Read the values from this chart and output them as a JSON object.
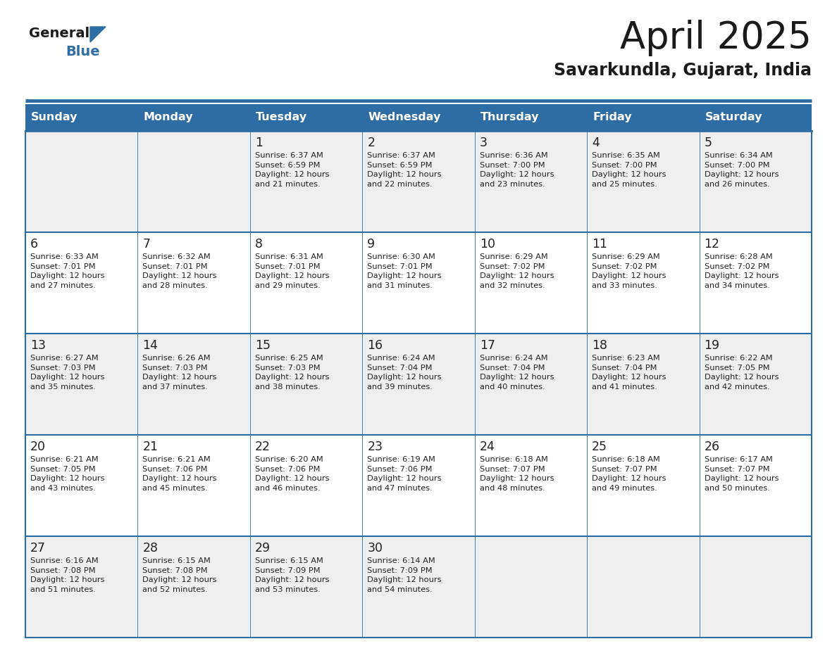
{
  "title": "April 2025",
  "subtitle": "Savarkundla, Gujarat, India",
  "header_bg_color": "#2E6DA4",
  "header_text_color": "#FFFFFF",
  "row_bg_odd": "#EFEFEF",
  "row_bg_even": "#FFFFFF",
  "text_color": "#222222",
  "line_color": "#2E6DA4",
  "days_of_week": [
    "Sunday",
    "Monday",
    "Tuesday",
    "Wednesday",
    "Thursday",
    "Friday",
    "Saturday"
  ],
  "weeks": [
    [
      {
        "day": "",
        "info": ""
      },
      {
        "day": "",
        "info": ""
      },
      {
        "day": "1",
        "info": "Sunrise: 6:37 AM\nSunset: 6:59 PM\nDaylight: 12 hours\nand 21 minutes."
      },
      {
        "day": "2",
        "info": "Sunrise: 6:37 AM\nSunset: 6:59 PM\nDaylight: 12 hours\nand 22 minutes."
      },
      {
        "day": "3",
        "info": "Sunrise: 6:36 AM\nSunset: 7:00 PM\nDaylight: 12 hours\nand 23 minutes."
      },
      {
        "day": "4",
        "info": "Sunrise: 6:35 AM\nSunset: 7:00 PM\nDaylight: 12 hours\nand 25 minutes."
      },
      {
        "day": "5",
        "info": "Sunrise: 6:34 AM\nSunset: 7:00 PM\nDaylight: 12 hours\nand 26 minutes."
      }
    ],
    [
      {
        "day": "6",
        "info": "Sunrise: 6:33 AM\nSunset: 7:01 PM\nDaylight: 12 hours\nand 27 minutes."
      },
      {
        "day": "7",
        "info": "Sunrise: 6:32 AM\nSunset: 7:01 PM\nDaylight: 12 hours\nand 28 minutes."
      },
      {
        "day": "8",
        "info": "Sunrise: 6:31 AM\nSunset: 7:01 PM\nDaylight: 12 hours\nand 29 minutes."
      },
      {
        "day": "9",
        "info": "Sunrise: 6:30 AM\nSunset: 7:01 PM\nDaylight: 12 hours\nand 31 minutes."
      },
      {
        "day": "10",
        "info": "Sunrise: 6:29 AM\nSunset: 7:02 PM\nDaylight: 12 hours\nand 32 minutes."
      },
      {
        "day": "11",
        "info": "Sunrise: 6:29 AM\nSunset: 7:02 PM\nDaylight: 12 hours\nand 33 minutes."
      },
      {
        "day": "12",
        "info": "Sunrise: 6:28 AM\nSunset: 7:02 PM\nDaylight: 12 hours\nand 34 minutes."
      }
    ],
    [
      {
        "day": "13",
        "info": "Sunrise: 6:27 AM\nSunset: 7:03 PM\nDaylight: 12 hours\nand 35 minutes."
      },
      {
        "day": "14",
        "info": "Sunrise: 6:26 AM\nSunset: 7:03 PM\nDaylight: 12 hours\nand 37 minutes."
      },
      {
        "day": "15",
        "info": "Sunrise: 6:25 AM\nSunset: 7:03 PM\nDaylight: 12 hours\nand 38 minutes."
      },
      {
        "day": "16",
        "info": "Sunrise: 6:24 AM\nSunset: 7:04 PM\nDaylight: 12 hours\nand 39 minutes."
      },
      {
        "day": "17",
        "info": "Sunrise: 6:24 AM\nSunset: 7:04 PM\nDaylight: 12 hours\nand 40 minutes."
      },
      {
        "day": "18",
        "info": "Sunrise: 6:23 AM\nSunset: 7:04 PM\nDaylight: 12 hours\nand 41 minutes."
      },
      {
        "day": "19",
        "info": "Sunrise: 6:22 AM\nSunset: 7:05 PM\nDaylight: 12 hours\nand 42 minutes."
      }
    ],
    [
      {
        "day": "20",
        "info": "Sunrise: 6:21 AM\nSunset: 7:05 PM\nDaylight: 12 hours\nand 43 minutes."
      },
      {
        "day": "21",
        "info": "Sunrise: 6:21 AM\nSunset: 7:06 PM\nDaylight: 12 hours\nand 45 minutes."
      },
      {
        "day": "22",
        "info": "Sunrise: 6:20 AM\nSunset: 7:06 PM\nDaylight: 12 hours\nand 46 minutes."
      },
      {
        "day": "23",
        "info": "Sunrise: 6:19 AM\nSunset: 7:06 PM\nDaylight: 12 hours\nand 47 minutes."
      },
      {
        "day": "24",
        "info": "Sunrise: 6:18 AM\nSunset: 7:07 PM\nDaylight: 12 hours\nand 48 minutes."
      },
      {
        "day": "25",
        "info": "Sunrise: 6:18 AM\nSunset: 7:07 PM\nDaylight: 12 hours\nand 49 minutes."
      },
      {
        "day": "26",
        "info": "Sunrise: 6:17 AM\nSunset: 7:07 PM\nDaylight: 12 hours\nand 50 minutes."
      }
    ],
    [
      {
        "day": "27",
        "info": "Sunrise: 6:16 AM\nSunset: 7:08 PM\nDaylight: 12 hours\nand 51 minutes."
      },
      {
        "day": "28",
        "info": "Sunrise: 6:15 AM\nSunset: 7:08 PM\nDaylight: 12 hours\nand 52 minutes."
      },
      {
        "day": "29",
        "info": "Sunrise: 6:15 AM\nSunset: 7:09 PM\nDaylight: 12 hours\nand 53 minutes."
      },
      {
        "day": "30",
        "info": "Sunrise: 6:14 AM\nSunset: 7:09 PM\nDaylight: 12 hours\nand 54 minutes."
      },
      {
        "day": "",
        "info": ""
      },
      {
        "day": "",
        "info": ""
      },
      {
        "day": "",
        "info": ""
      }
    ]
  ],
  "logo_text_general": "General",
  "logo_text_blue": "Blue",
  "figwidth": 11.88,
  "figheight": 9.18,
  "dpi": 100
}
